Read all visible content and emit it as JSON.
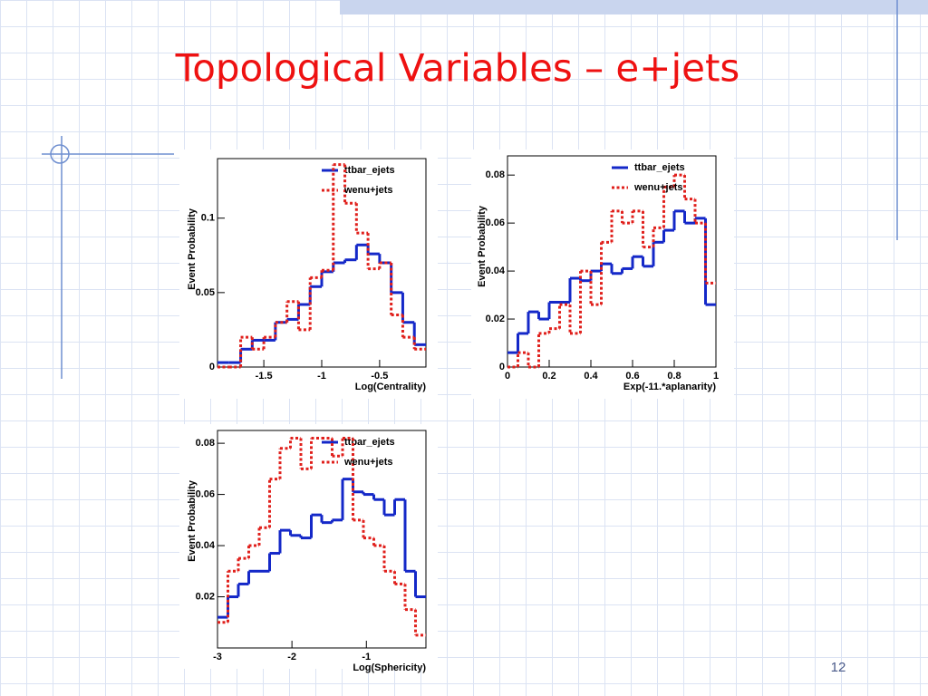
{
  "slide": {
    "title": "Topological Variables – e+jets",
    "page_number": "12"
  },
  "chart_data": [
    {
      "type": "histogram",
      "x_label": "Log(Centrality)",
      "y_label": "Event Probability",
      "bins": [
        -1.9,
        -1.8,
        -1.7,
        -1.6,
        -1.5,
        -1.4,
        -1.3,
        -1.2,
        -1.1,
        -1.0,
        -0.9,
        -0.8,
        -0.7,
        -0.6,
        -0.5,
        -0.4,
        -0.3,
        -0.2,
        -0.1
      ],
      "series": [
        {
          "name": "ttbar_ejets",
          "color": "#1428c8",
          "line_style": "solid",
          "values": [
            0.003,
            0.003,
            0.012,
            0.018,
            0.018,
            0.03,
            0.032,
            0.042,
            0.054,
            0.064,
            0.07,
            0.072,
            0.082,
            0.076,
            0.07,
            0.05,
            0.03,
            0.015
          ]
        },
        {
          "name": "wenu+jets",
          "color": "#e0201c",
          "line_style": "dotted",
          "values": [
            0.0,
            0.0,
            0.02,
            0.012,
            0.02,
            0.03,
            0.044,
            0.025,
            0.06,
            0.065,
            0.136,
            0.11,
            0.09,
            0.066,
            0.07,
            0.035,
            0.02,
            0.012
          ]
        }
      ],
      "xlim": [
        -1.9,
        -0.1
      ],
      "xticks": [
        -1.5,
        -1,
        -0.5
      ],
      "ylim": [
        0,
        0.14
      ],
      "yticks": [
        0,
        0.05,
        0.1
      ],
      "legend": "upper right"
    },
    {
      "type": "histogram",
      "x_label": "Exp(-11.*aplanarity)",
      "y_label": "Event Probability",
      "bins": [
        0,
        0.05,
        0.1,
        0.15,
        0.2,
        0.25,
        0.3,
        0.35,
        0.4,
        0.45,
        0.5,
        0.55,
        0.6,
        0.65,
        0.7,
        0.75,
        0.8,
        0.85,
        0.9,
        0.95,
        1
      ],
      "series": [
        {
          "name": "ttbar_ejets",
          "color": "#1428c8",
          "line_style": "solid",
          "values": [
            0.006,
            0.014,
            0.023,
            0.02,
            0.027,
            0.027,
            0.037,
            0.036,
            0.04,
            0.043,
            0.039,
            0.041,
            0.046,
            0.042,
            0.052,
            0.057,
            0.065,
            0.06,
            0.062,
            0.026
          ]
        },
        {
          "name": "wenu+jets",
          "color": "#e0201c",
          "line_style": "dotted",
          "values": [
            0,
            0.006,
            0.0,
            0.014,
            0.016,
            0.026,
            0.014,
            0.04,
            0.026,
            0.052,
            0.065,
            0.06,
            0.065,
            0.05,
            0.058,
            0.075,
            0.08,
            0.07,
            0.06,
            0.035
          ]
        }
      ],
      "xlim": [
        0,
        1
      ],
      "xticks": [
        0,
        0.2,
        0.4,
        0.6,
        0.8,
        1
      ],
      "ylim": [
        0,
        0.088
      ],
      "yticks": [
        0,
        0.02,
        0.04,
        0.06,
        0.08
      ],
      "legend": "upper right"
    },
    {
      "type": "histogram",
      "x_label": "Log(Sphericity)",
      "y_label": "Event Probability",
      "bins": [
        -3,
        -2.86,
        -2.72,
        -2.58,
        -2.44,
        -2.3,
        -2.16,
        -2.02,
        -1.88,
        -1.74,
        -1.6,
        -1.46,
        -1.32,
        -1.18,
        -1.04,
        -0.9,
        -0.76,
        -0.62,
        -0.48,
        -0.34,
        -0.2
      ],
      "series": [
        {
          "name": "ttbar_ejets",
          "color": "#1428c8",
          "line_style": "solid",
          "values": [
            0.012,
            0.02,
            0.025,
            0.03,
            0.03,
            0.037,
            0.046,
            0.044,
            0.043,
            0.052,
            0.049,
            0.05,
            0.066,
            0.061,
            0.06,
            0.058,
            0.052,
            0.058,
            0.03,
            0.02
          ]
        },
        {
          "name": "wenu+jets",
          "color": "#e0201c",
          "line_style": "dotted",
          "values": [
            0.01,
            0.03,
            0.035,
            0.04,
            0.047,
            0.066,
            0.078,
            0.082,
            0.07,
            0.082,
            0.082,
            0.075,
            0.082,
            0.05,
            0.043,
            0.04,
            0.03,
            0.025,
            0.015,
            0.005
          ]
        }
      ],
      "xlim": [
        -3,
        -0.2
      ],
      "xticks": [
        -3,
        -2,
        -1
      ],
      "ylim": [
        0,
        0.085
      ],
      "yticks": [
        0.02,
        0.04,
        0.06,
        0.08
      ],
      "legend": "upper right"
    }
  ]
}
